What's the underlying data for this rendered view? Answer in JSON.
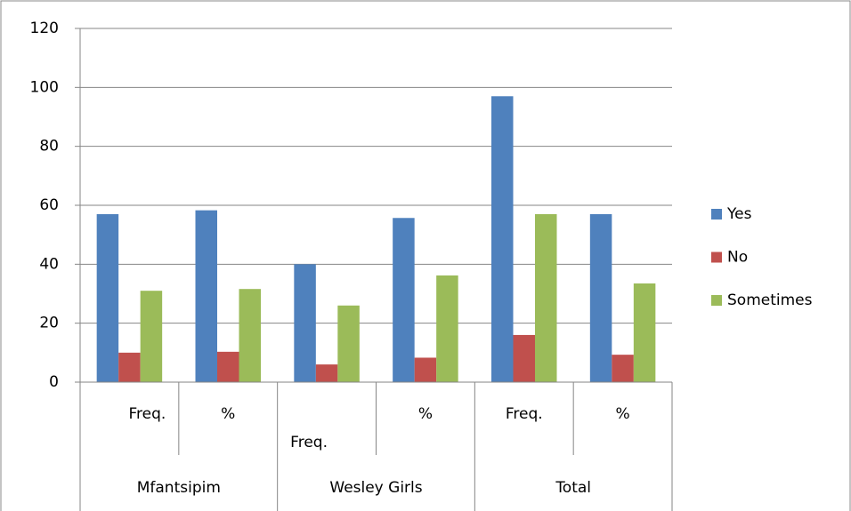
{
  "chart_data": {
    "type": "bar",
    "categories": [
      "Freq.",
      "%",
      "Freq.",
      "%",
      "Freq.",
      "%"
    ],
    "groups": [
      "Mfantsipim",
      "Wesley Girls",
      "Total"
    ],
    "series": [
      {
        "name": "Yes",
        "color": "#4f81bd",
        "values": [
          57,
          58.3,
          40,
          55.7,
          97,
          57
        ]
      },
      {
        "name": "No",
        "color": "#c0504d",
        "values": [
          10,
          10.3,
          6,
          8.3,
          16,
          9.3
        ]
      },
      {
        "name": "Sometimes",
        "color": "#9bbb59",
        "values": [
          31,
          31.6,
          26,
          36.2,
          57,
          33.5
        ]
      }
    ],
    "ylim": [
      0,
      120
    ],
    "yticks": [
      0,
      20,
      40,
      60,
      80,
      100,
      120
    ],
    "grid": true,
    "legend": "right"
  }
}
